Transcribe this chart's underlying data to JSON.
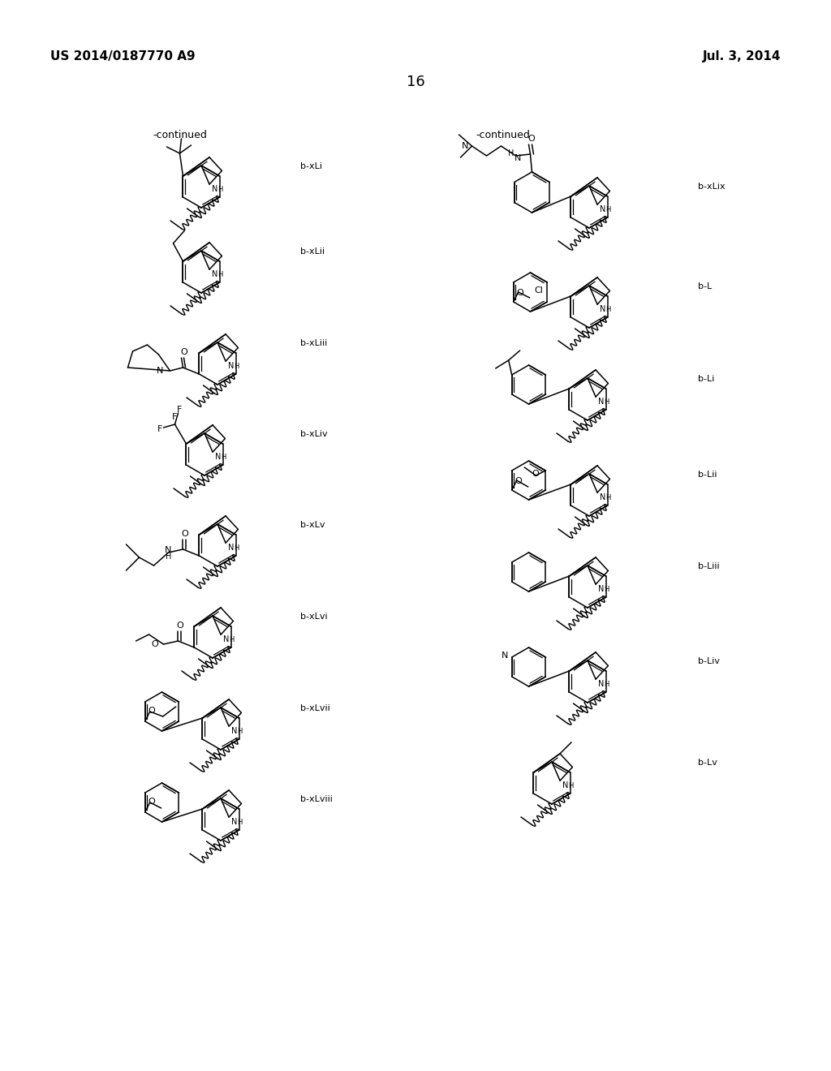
{
  "page_header_left": "US 2014/0187770 A9",
  "page_header_right": "Jul. 3, 2014",
  "page_number": "16",
  "left_continued": "-continued",
  "right_continued": "-continued",
  "left_labels": [
    "b-xLi",
    "b-xLii",
    "b-xLiii",
    "b-xLiv",
    "b-xLv",
    "b-xLvi",
    "b-xLvii",
    "b-xLviii"
  ],
  "right_labels": [
    "b-xLix",
    "b-L",
    "b-Li",
    "b-Lii",
    "b-Liii",
    "b-Liv",
    "b-Lv"
  ],
  "bg": "#ffffff",
  "ink": "#000000"
}
